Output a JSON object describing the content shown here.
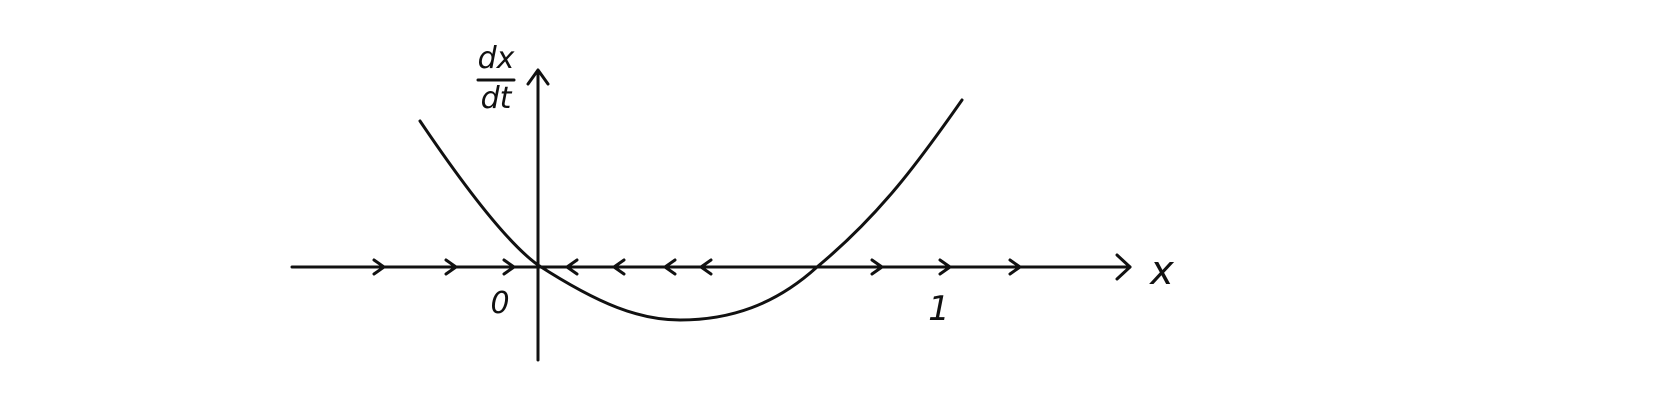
{
  "diagram": {
    "y_axis_label_numerator": "dx",
    "y_axis_label_denominator": "dt",
    "x_axis_label": "x",
    "tick_label_zero": "0",
    "tick_label_one": "1",
    "curve": "parabola",
    "roots": [
      0,
      1
    ],
    "flow_directions": {
      "x_less_than_0": "right",
      "between_0_and_1": "left",
      "x_greater_than_1": "right"
    },
    "ink_color": "#111111"
  }
}
